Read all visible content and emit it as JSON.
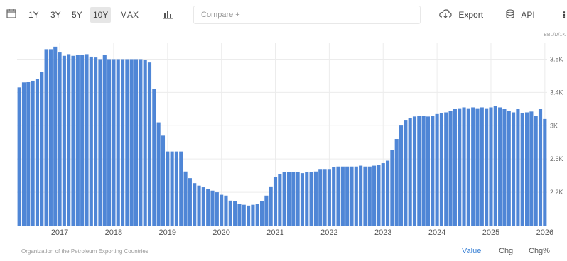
{
  "toolbar": {
    "ranges": [
      "1Y",
      "3Y",
      "5Y",
      "10Y",
      "MAX"
    ],
    "active_range": "10Y",
    "compare_placeholder": "Compare +",
    "export_label": "Export",
    "api_label": "API"
  },
  "icons": [
    "calendar-icon",
    "chart-type-icon",
    "export-icon",
    "api-icon",
    "more-icon"
  ],
  "unit_label": "BBL/D/1K",
  "source": "Organization of the Petroleum Exporting Countries",
  "footer_tabs": [
    "Value",
    "Chg",
    "Chg%"
  ],
  "active_footer_tab": "Value",
  "colors": {
    "bar": "#4f86d6",
    "bar_edge": "#3f74c4",
    "accent": "#3b82d6",
    "grid": "#ececec"
  },
  "chart_data": {
    "type": "bar",
    "ylim": [
      1800,
      4000
    ],
    "yticks": [
      2200,
      2600,
      3000,
      3400,
      3800
    ],
    "ytick_labels": [
      "2.2K",
      "2.6K",
      "3K",
      "3.4K",
      "3.8K"
    ],
    "xtick_labels": [
      "2017",
      "2018",
      "2019",
      "2020",
      "2021",
      "2022",
      "2023",
      "2024",
      "2025",
      "2026"
    ],
    "grid": true,
    "start": "2016-04",
    "frequency": "monthly",
    "values": [
      3460,
      3520,
      3530,
      3540,
      3560,
      3650,
      3920,
      3920,
      3950,
      3880,
      3840,
      3860,
      3840,
      3850,
      3850,
      3860,
      3830,
      3820,
      3800,
      3850,
      3800,
      3800,
      3800,
      3800,
      3800,
      3800,
      3800,
      3800,
      3790,
      3760,
      3440,
      3040,
      2880,
      2690,
      2690,
      2690,
      2690,
      2450,
      2370,
      2310,
      2280,
      2260,
      2240,
      2220,
      2200,
      2170,
      2160,
      2100,
      2090,
      2060,
      2050,
      2040,
      2050,
      2060,
      2090,
      2160,
      2270,
      2380,
      2420,
      2440,
      2440,
      2440,
      2440,
      2430,
      2440,
      2440,
      2450,
      2480,
      2480,
      2480,
      2500,
      2510,
      2510,
      2510,
      2510,
      2510,
      2520,
      2510,
      2510,
      2520,
      2530,
      2550,
      2580,
      2710,
      2840,
      3010,
      3070,
      3090,
      3110,
      3120,
      3120,
      3110,
      3120,
      3140,
      3150,
      3160,
      3180,
      3200,
      3210,
      3220,
      3210,
      3220,
      3210,
      3220,
      3210,
      3220,
      3240,
      3220,
      3200,
      3180,
      3160,
      3200,
      3150,
      3160,
      3170,
      3120,
      3200,
      3080
    ]
  }
}
